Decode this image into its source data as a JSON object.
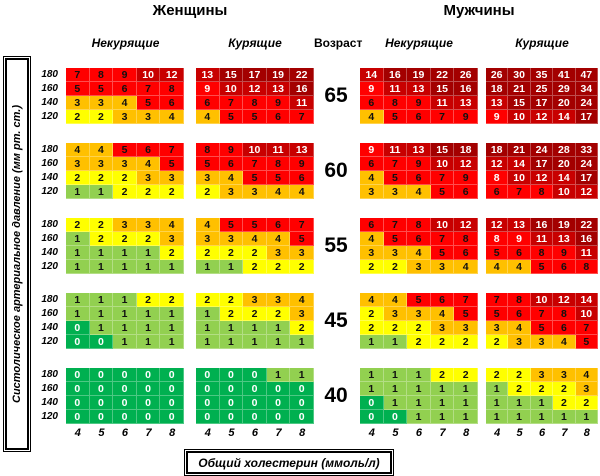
{
  "page": {
    "women_title": "Женщины",
    "men_title": "Мужчины",
    "age_header": "Возраст",
    "nonsmoker_header": "Некурящие",
    "smoker_header": "Курящие",
    "y_axis_label": "Систолическое артериальное давление (мм рт. ст.)",
    "x_axis_label": "Общий холестерин (ммоль/л)"
  },
  "colors": {
    "g": "#00B050",
    "l": "#92D050",
    "y": "#FFFF00",
    "o": "#FFC000",
    "r": "#FF0000",
    "d": "#C80000",
    "x": "#A30000"
  },
  "chart_data": {
    "type": "heatmap",
    "title": "SCORE 10-year cardiovascular risk (%) by sex, age, smoking status, systolic BP and total cholesterol",
    "x_axis": {
      "label": "Общий холестерин (ммоль/л)",
      "ticks": [
        "4",
        "5",
        "6",
        "7",
        "8"
      ]
    },
    "y_axis": {
      "label": "Систолическое артериальное давление (мм рт. ст.)",
      "ticks": [
        "180",
        "160",
        "140",
        "120"
      ]
    },
    "bp_labels": [
      "180",
      "160",
      "140",
      "120"
    ],
    "chol_labels": [
      "4",
      "5",
      "6",
      "7",
      "8"
    ],
    "cell_encoding": "value + color code: g=green(0), l=light-green(1), y=yellow(2), o=orange(3-4), r=red(5-9), d=dark-red(10-14), x=darkest-red(15+); uppercase code = white text on red",
    "age_groups": [
      {
        "age": "65",
        "grids": {
          "women_nonsmoker": [
            "7r 8r 9r 10d 12d",
            "5r 5r 6r 7r 8r",
            "3o 3o 4o 5r 6r",
            "2y 2y 3o 3o 4o"
          ],
          "women_smoker": [
            "13d 15x 17x 19x 22x",
            "9R 10d 12d 13d 16x",
            "6r 7r 8r 9r 11d",
            "4o 5r 5r 6r 7r"
          ],
          "men_nonsmoker": [
            "14d 16x 19x 22x 26x",
            "9R 11d 13d 15x 16x",
            "6r 8r 9r 11d 13d",
            "4o 5r 6r 7r 9r"
          ],
          "men_smoker": [
            "26x 30x 35x 41x 47x",
            "18x 21x 25x 29x 34x",
            "13d 15x 17x 20x 24x",
            "9R 10d 12d 14d 17x"
          ]
        }
      },
      {
        "age": "60",
        "grids": {
          "women_nonsmoker": [
            "4o 4o 5r 6r 7r",
            "3o 3o 3o 4o 5r",
            "2y 2y 2y 3o 3o",
            "1l 1l 2y 2y 2y"
          ],
          "women_smoker": [
            "8r 9r 10d 11d 13d",
            "5r 6r 7r 8r 9r",
            "3o 4o 5r 5r 6r",
            "2y 3o 3o 4o 4o"
          ],
          "men_nonsmoker": [
            "9R 11d 13d 15x 18x",
            "6r 7r 9r 10d 12d",
            "4o 5r 6r 7r 9r",
            "3o 3o 4o 5r 6r"
          ],
          "men_smoker": [
            "18x 21x 24x 28x 33x",
            "12d 14d 17x 20x 24x",
            "8R 10d 12d 14d 17x",
            "6r 7r 8r 10d 12d"
          ]
        }
      },
      {
        "age": "55",
        "grids": {
          "women_nonsmoker": [
            "2y 2y 3o 3o 4o",
            "1l 2y 2y 2y 3o",
            "1l 1l 1l 1l 2y",
            "1l 1l 1l 1l 1l"
          ],
          "women_smoker": [
            "4o 5r 5r 6r 7r",
            "3o 3o 4o 4o 5r",
            "2y 2y 2y 3o 3o",
            "1l 1l 2y 2y 2y"
          ],
          "men_nonsmoker": [
            "6r 7r 8r 10d 12d",
            "4o 5r 6r 7r 8r",
            "3o 3o 4o 5r 6r",
            "2y 2y 3o 3o 4o"
          ],
          "men_smoker": [
            "12d 13d 16x 19x 22x",
            "8R 9R 11d 13d 16x",
            "5r 6r 8r 9r 11d",
            "4o 4o 5r 6r 8r"
          ]
        }
      },
      {
        "age": "45",
        "grids": {
          "women_nonsmoker": [
            "1l 1l 1l 2y 2y",
            "1l 1l 1l 1l 1l",
            "0g 1l 1l 1l 1l",
            "0g 0g 1l 1l 1l"
          ],
          "women_smoker": [
            "2y 2y 3o 3o 4o",
            "1l 2y 2y 2y 3o",
            "1l 1l 1l 1l 2y",
            "1l 1l 1l 1l 1l"
          ],
          "men_nonsmoker": [
            "4o 4o 5r 6r 7r",
            "2y 3o 3o 4o 5r",
            "2y 2y 2y 3o 3o",
            "1l 1l 2y 2y 2y"
          ],
          "men_smoker": [
            "7r 8r 10d 12d 14d",
            "5r 6r 7r 8r 10d",
            "3o 4o 5r 6r 7r",
            "2y 3o 3o 4o 5r"
          ]
        }
      },
      {
        "age": "40",
        "grids": {
          "women_nonsmoker": [
            "0g 0g 0g 0g 0g",
            "0g 0g 0g 0g 0g",
            "0g 0g 0g 0g 0g",
            "0g 0g 0g 0g 0g"
          ],
          "women_smoker": [
            "0g 0g 0g 1l 1l",
            "0g 0g 0g 0g 0g",
            "0g 0g 0g 0g 0g",
            "0g 0g 0g 0g 0g"
          ],
          "men_nonsmoker": [
            "1l 1l 1l 2y 2y",
            "1l 1l 1l 1l 1l",
            "0g 1l 1l 1l 1l",
            "0g 0g 1l 1l 1l"
          ],
          "men_smoker": [
            "2y 2y 3o 3o 4o",
            "1l 2y 2y 2y 3o",
            "1l 1l 1l 2y 2y",
            "1l 1l 1l 1l 1l"
          ]
        }
      }
    ]
  }
}
